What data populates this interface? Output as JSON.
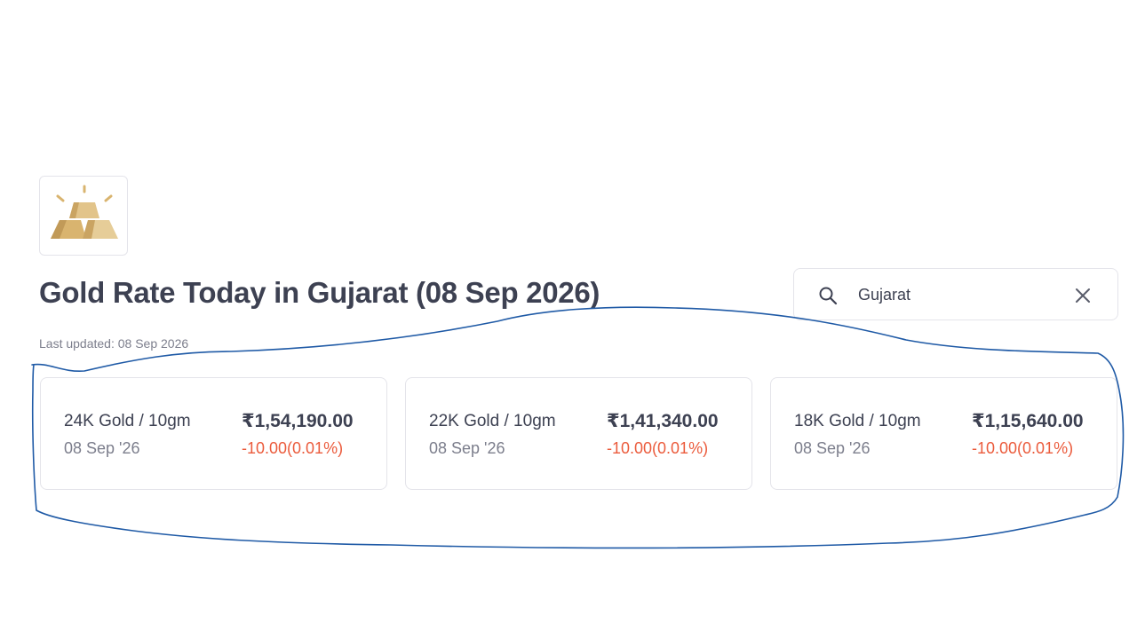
{
  "logo": {
    "icon": "gold-bars-icon",
    "color": "#d9b46f"
  },
  "header": {
    "title": "Gold Rate Today in Gujarat (08 Sep 2026)",
    "last_updated": "Last updated: 08 Sep 2026"
  },
  "search": {
    "icon": "search-icon",
    "value": "Gujarat",
    "clear_icon": "close-icon"
  },
  "cards": [
    {
      "label": "24K Gold / 10gm",
      "date": "08 Sep '26",
      "price": "₹1,54,190.00",
      "change": "-10.00(0.01%)"
    },
    {
      "label": "22K Gold / 10gm",
      "date": "08 Sep '26",
      "price": "₹1,41,340.00",
      "change": "-10.00(0.01%)"
    },
    {
      "label": "18K Gold / 10gm",
      "date": "08 Sep '26",
      "price": "₹1,15,640.00",
      "change": "-10.00(0.01%)"
    }
  ],
  "colors": {
    "text_primary": "#3d4152",
    "text_secondary": "#7c7e8c",
    "negative": "#eb5b3c",
    "annotation": "#1f5aa6"
  }
}
